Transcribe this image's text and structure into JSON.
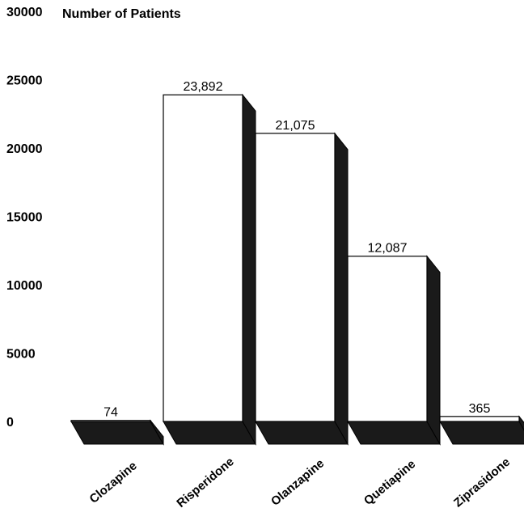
{
  "chart_data": {
    "type": "bar",
    "title": "Number of Patients",
    "xlabel": "",
    "ylabel": "",
    "ylim": [
      0,
      30000
    ],
    "yticks": [
      0,
      5000,
      10000,
      15000,
      20000,
      25000,
      30000
    ],
    "categories": [
      "Clozapine",
      "Risperidone",
      "Olanzapine",
      "Quetiapine",
      "Ziprasidone"
    ],
    "values": [
      74,
      23892,
      21075,
      12087,
      365
    ],
    "value_labels": [
      "74",
      "23,892",
      "21,075",
      "12,087",
      "365"
    ],
    "grid": false,
    "legend": "none",
    "style": "3d",
    "colors": {
      "bar_face": "#ffffff",
      "bar_side": "#1a1a1a",
      "outline": "#000000"
    }
  }
}
